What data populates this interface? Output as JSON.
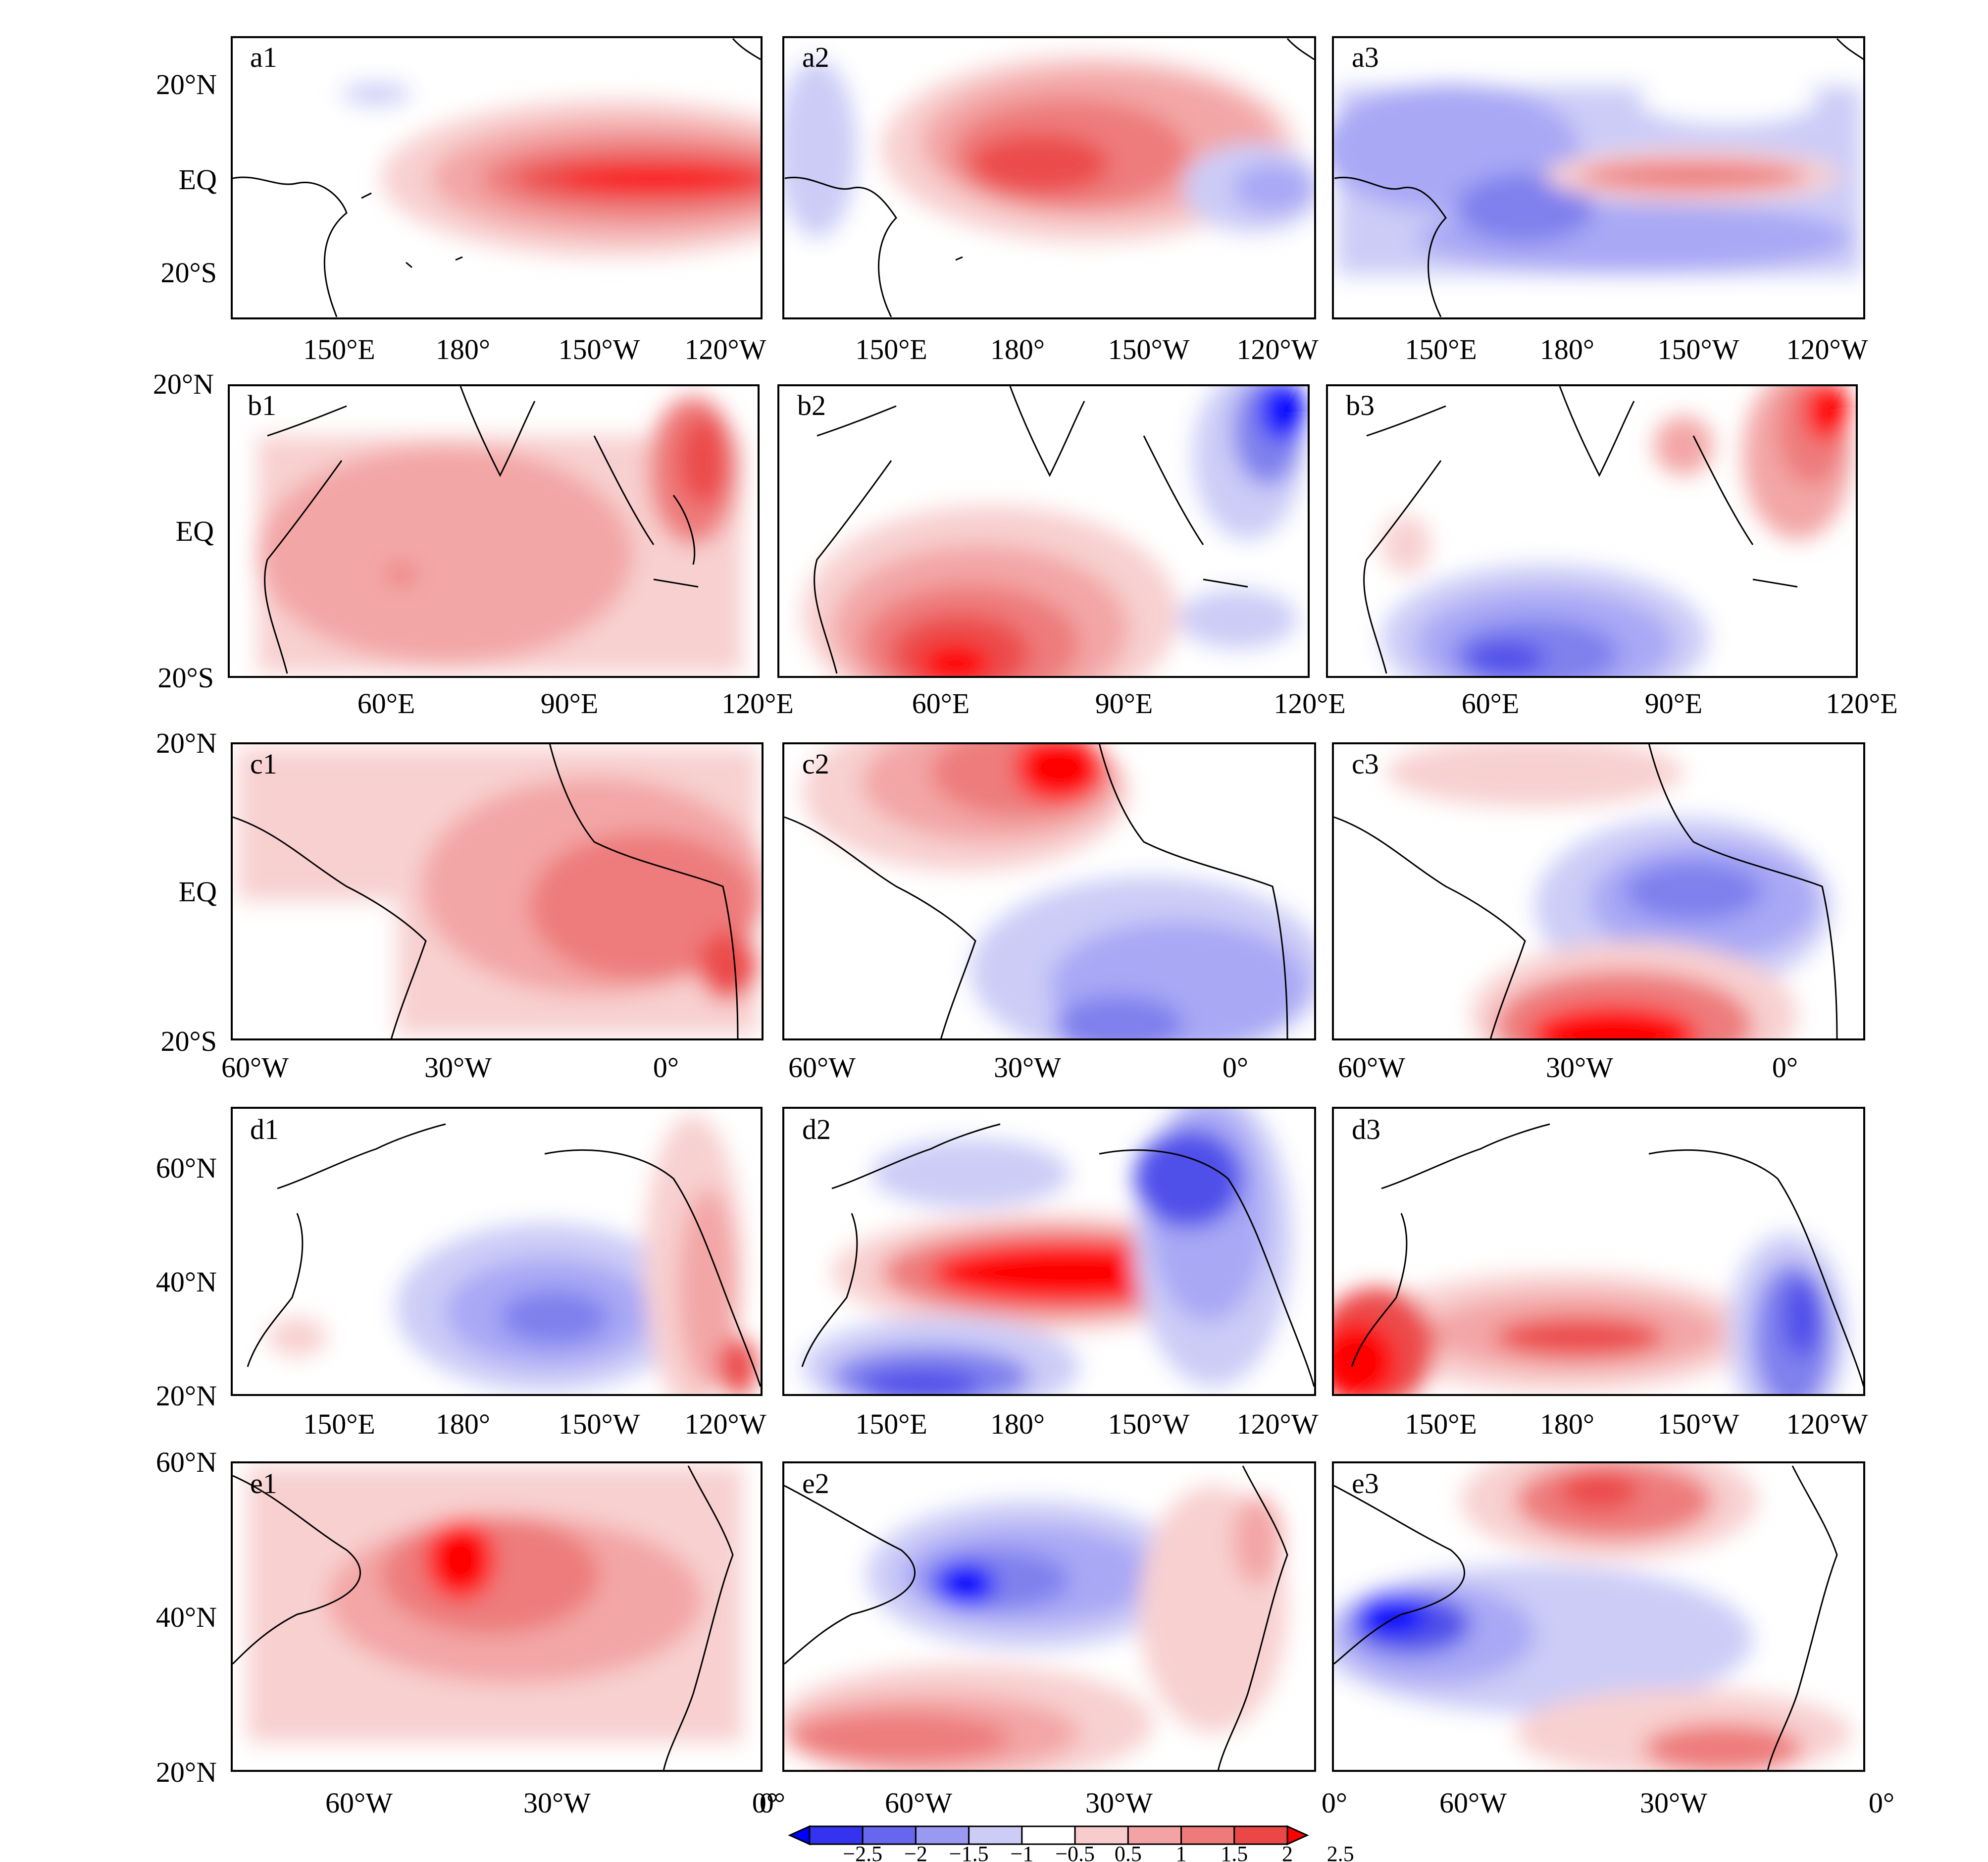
{
  "panels": [
    {
      "id": "a1",
      "label": "a1",
      "lat": [
        "20°N",
        "EQ",
        "20°S"
      ],
      "lon": [
        "150°E",
        "180°",
        "150°W",
        "120°W"
      ]
    },
    {
      "id": "a2",
      "label": "a2",
      "lat": [],
      "lon": [
        "150°E",
        "180°",
        "150°W",
        "120°W"
      ]
    },
    {
      "id": "a3",
      "label": "a3",
      "lat": [],
      "lon": [
        "150°E",
        "180°",
        "150°W",
        "120°W"
      ]
    },
    {
      "id": "b1",
      "label": "b1",
      "lat": [
        "20°N",
        "EQ",
        "20°S"
      ],
      "lon": [
        "60°E",
        "90°E",
        "120°E"
      ]
    },
    {
      "id": "b2",
      "label": "b2",
      "lat": [],
      "lon": [
        "60°E",
        "90°E",
        "120°E"
      ]
    },
    {
      "id": "b3",
      "label": "b3",
      "lat": [],
      "lon": [
        "60°E",
        "90°E",
        "120°E"
      ]
    },
    {
      "id": "c1",
      "label": "c1",
      "lat": [
        "20°N",
        "EQ",
        "20°S"
      ],
      "lon": [
        "60°W",
        "30°W",
        "0°"
      ]
    },
    {
      "id": "c2",
      "label": "c2",
      "lat": [],
      "lon": [
        "60°W",
        "30°W",
        "0°"
      ]
    },
    {
      "id": "c3",
      "label": "c3",
      "lat": [],
      "lon": [
        "60°W",
        "30°W",
        "0°"
      ]
    },
    {
      "id": "d1",
      "label": "d1",
      "lat": [
        "60°N",
        "40°N",
        "20°N"
      ],
      "lon": [
        "150°E",
        "180°",
        "150°W",
        "120°W"
      ]
    },
    {
      "id": "d2",
      "label": "d2",
      "lat": [],
      "lon": [
        "150°E",
        "180°",
        "150°W",
        "120°W"
      ]
    },
    {
      "id": "d3",
      "label": "d3",
      "lat": [],
      "lon": [
        "150°E",
        "180°",
        "150°W",
        "120°W"
      ]
    },
    {
      "id": "e1",
      "label": "e1",
      "lat": [
        "60°N",
        "40°N",
        "20°N"
      ],
      "lon": [
        "60°W",
        "30°W",
        "0°"
      ]
    },
    {
      "id": "e2",
      "label": "e2",
      "lat": [],
      "lon": [
        "0°",
        "60°W",
        "30°W"
      ]
    },
    {
      "id": "e3",
      "label": "e3",
      "lat": [],
      "lon": [
        "0°",
        "60°W",
        "30°W",
        "0°"
      ]
    }
  ],
  "colorbar": {
    "levels": [
      "−2.5",
      "−2",
      "−1.5",
      "−1",
      "−0.5",
      "0.5",
      "1",
      "1.5",
      "2",
      "2.5"
    ],
    "colors": [
      "#0000ff",
      "#3333f0",
      "#6666ee",
      "#9999f2",
      "#ccccf7",
      "#ffffff",
      "#f8cccc",
      "#f3a3a3",
      "#ee7a7a",
      "#ec4747",
      "#ff0000"
    ]
  },
  "palette": {
    "neg": [
      "#ccccf7",
      "#a8a8f5",
      "#8080ee",
      "#5050ea",
      "#0000ff"
    ],
    "pos": [
      "#f8d0d0",
      "#f3a6a6",
      "#ee7c7c",
      "#ec4b4b",
      "#ff0000"
    ]
  }
}
